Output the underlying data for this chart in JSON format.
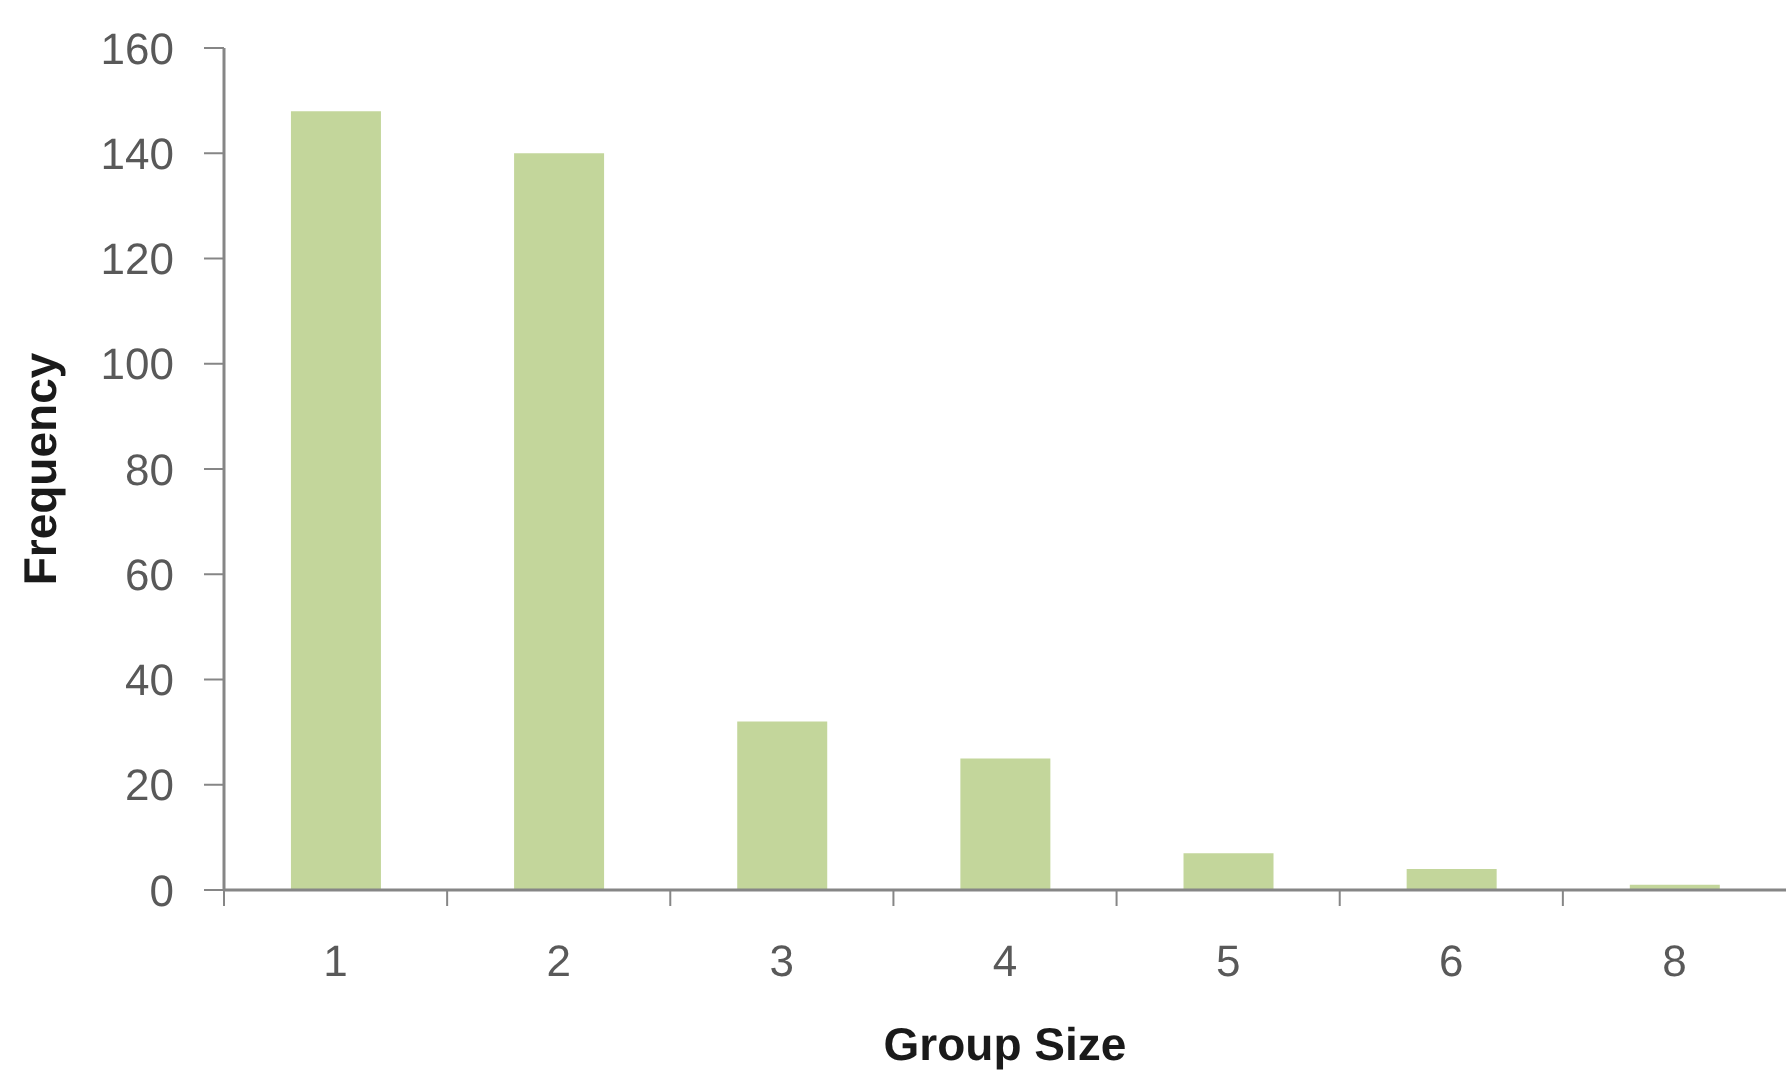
{
  "chart_data": {
    "type": "bar",
    "xlabel": "Group Size",
    "ylabel": "Frequency",
    "categories": [
      "1",
      "2",
      "3",
      "4",
      "5",
      "6",
      "8"
    ],
    "values": [
      148,
      140,
      32,
      25,
      7,
      4,
      1
    ],
    "color": "#c3d69b",
    "ylim": [
      0,
      160
    ],
    "yticks": [
      0,
      20,
      40,
      60,
      80,
      100,
      120,
      140,
      160
    ]
  }
}
